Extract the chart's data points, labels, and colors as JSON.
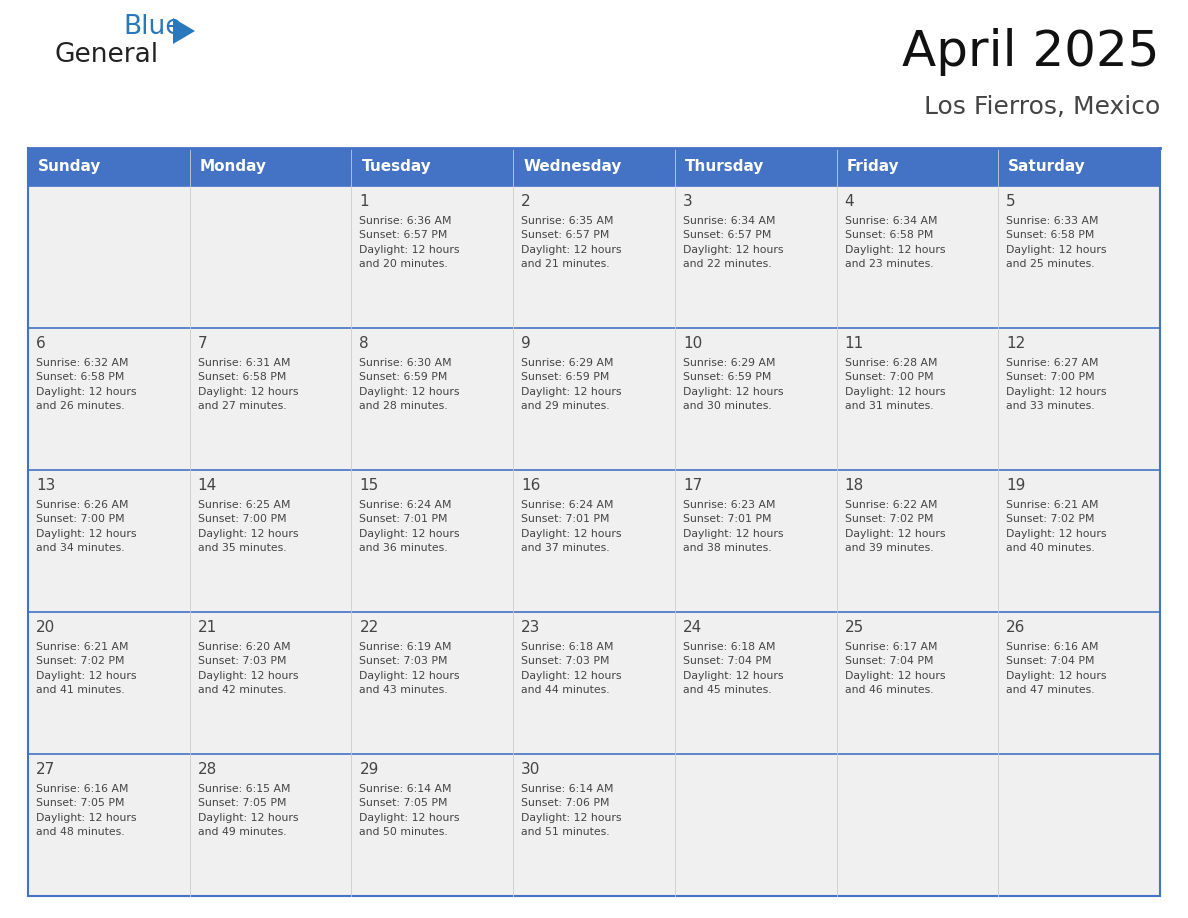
{
  "title": "April 2025",
  "subtitle": "Los Fierros, Mexico",
  "header_bg": "#4472C4",
  "header_text": "#FFFFFF",
  "cell_bg": "#F0F0F0",
  "cell_bg_white": "#FFFFFF",
  "border_color": "#4472C4",
  "row_divider_color": "#4472C4",
  "text_color": "#444444",
  "days_of_week": [
    "Sunday",
    "Monday",
    "Tuesday",
    "Wednesday",
    "Thursday",
    "Friday",
    "Saturday"
  ],
  "weeks": [
    [
      {
        "day": null,
        "info": null
      },
      {
        "day": null,
        "info": null
      },
      {
        "day": 1,
        "info": "Sunrise: 6:36 AM\nSunset: 6:57 PM\nDaylight: 12 hours\nand 20 minutes."
      },
      {
        "day": 2,
        "info": "Sunrise: 6:35 AM\nSunset: 6:57 PM\nDaylight: 12 hours\nand 21 minutes."
      },
      {
        "day": 3,
        "info": "Sunrise: 6:34 AM\nSunset: 6:57 PM\nDaylight: 12 hours\nand 22 minutes."
      },
      {
        "day": 4,
        "info": "Sunrise: 6:34 AM\nSunset: 6:58 PM\nDaylight: 12 hours\nand 23 minutes."
      },
      {
        "day": 5,
        "info": "Sunrise: 6:33 AM\nSunset: 6:58 PM\nDaylight: 12 hours\nand 25 minutes."
      }
    ],
    [
      {
        "day": 6,
        "info": "Sunrise: 6:32 AM\nSunset: 6:58 PM\nDaylight: 12 hours\nand 26 minutes."
      },
      {
        "day": 7,
        "info": "Sunrise: 6:31 AM\nSunset: 6:58 PM\nDaylight: 12 hours\nand 27 minutes."
      },
      {
        "day": 8,
        "info": "Sunrise: 6:30 AM\nSunset: 6:59 PM\nDaylight: 12 hours\nand 28 minutes."
      },
      {
        "day": 9,
        "info": "Sunrise: 6:29 AM\nSunset: 6:59 PM\nDaylight: 12 hours\nand 29 minutes."
      },
      {
        "day": 10,
        "info": "Sunrise: 6:29 AM\nSunset: 6:59 PM\nDaylight: 12 hours\nand 30 minutes."
      },
      {
        "day": 11,
        "info": "Sunrise: 6:28 AM\nSunset: 7:00 PM\nDaylight: 12 hours\nand 31 minutes."
      },
      {
        "day": 12,
        "info": "Sunrise: 6:27 AM\nSunset: 7:00 PM\nDaylight: 12 hours\nand 33 minutes."
      }
    ],
    [
      {
        "day": 13,
        "info": "Sunrise: 6:26 AM\nSunset: 7:00 PM\nDaylight: 12 hours\nand 34 minutes."
      },
      {
        "day": 14,
        "info": "Sunrise: 6:25 AM\nSunset: 7:00 PM\nDaylight: 12 hours\nand 35 minutes."
      },
      {
        "day": 15,
        "info": "Sunrise: 6:24 AM\nSunset: 7:01 PM\nDaylight: 12 hours\nand 36 minutes."
      },
      {
        "day": 16,
        "info": "Sunrise: 6:24 AM\nSunset: 7:01 PM\nDaylight: 12 hours\nand 37 minutes."
      },
      {
        "day": 17,
        "info": "Sunrise: 6:23 AM\nSunset: 7:01 PM\nDaylight: 12 hours\nand 38 minutes."
      },
      {
        "day": 18,
        "info": "Sunrise: 6:22 AM\nSunset: 7:02 PM\nDaylight: 12 hours\nand 39 minutes."
      },
      {
        "day": 19,
        "info": "Sunrise: 6:21 AM\nSunset: 7:02 PM\nDaylight: 12 hours\nand 40 minutes."
      }
    ],
    [
      {
        "day": 20,
        "info": "Sunrise: 6:21 AM\nSunset: 7:02 PM\nDaylight: 12 hours\nand 41 minutes."
      },
      {
        "day": 21,
        "info": "Sunrise: 6:20 AM\nSunset: 7:03 PM\nDaylight: 12 hours\nand 42 minutes."
      },
      {
        "day": 22,
        "info": "Sunrise: 6:19 AM\nSunset: 7:03 PM\nDaylight: 12 hours\nand 43 minutes."
      },
      {
        "day": 23,
        "info": "Sunrise: 6:18 AM\nSunset: 7:03 PM\nDaylight: 12 hours\nand 44 minutes."
      },
      {
        "day": 24,
        "info": "Sunrise: 6:18 AM\nSunset: 7:04 PM\nDaylight: 12 hours\nand 45 minutes."
      },
      {
        "day": 25,
        "info": "Sunrise: 6:17 AM\nSunset: 7:04 PM\nDaylight: 12 hours\nand 46 minutes."
      },
      {
        "day": 26,
        "info": "Sunrise: 6:16 AM\nSunset: 7:04 PM\nDaylight: 12 hours\nand 47 minutes."
      }
    ],
    [
      {
        "day": 27,
        "info": "Sunrise: 6:16 AM\nSunset: 7:05 PM\nDaylight: 12 hours\nand 48 minutes."
      },
      {
        "day": 28,
        "info": "Sunrise: 6:15 AM\nSunset: 7:05 PM\nDaylight: 12 hours\nand 49 minutes."
      },
      {
        "day": 29,
        "info": "Sunrise: 6:14 AM\nSunset: 7:05 PM\nDaylight: 12 hours\nand 50 minutes."
      },
      {
        "day": 30,
        "info": "Sunrise: 6:14 AM\nSunset: 7:06 PM\nDaylight: 12 hours\nand 51 minutes."
      },
      {
        "day": null,
        "info": null
      },
      {
        "day": null,
        "info": null
      },
      {
        "day": null,
        "info": null
      }
    ]
  ],
  "logo_general_color": "#222222",
  "logo_blue_color": "#2878BE",
  "logo_triangle_color": "#2878BE",
  "fig_width": 11.88,
  "fig_height": 9.18,
  "dpi": 100
}
